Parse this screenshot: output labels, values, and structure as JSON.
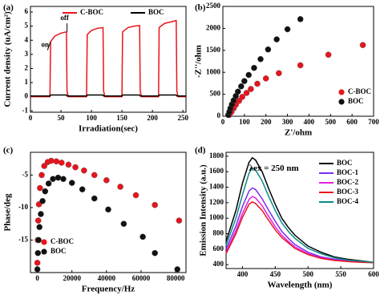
{
  "chart_data": [
    {
      "type": "line",
      "title": "(a)",
      "xlabel": "Irradiation(sec)",
      "ylabel": "Current density (uA/cm²)",
      "x": [
        0,
        32,
        33,
        40,
        50,
        59,
        60,
        62,
        92,
        93,
        100,
        110,
        119,
        120,
        122,
        150,
        151,
        160,
        170,
        179,
        180,
        182,
        210,
        211,
        220,
        230,
        239,
        240,
        242,
        255
      ],
      "series": [
        {
          "name": "C-BOC",
          "color": "#e8141c",
          "values": [
            0,
            0,
            3.9,
            4.3,
            4.5,
            4.6,
            0.4,
            0,
            0,
            4.4,
            4.7,
            4.85,
            4.9,
            0.4,
            0,
            0,
            4.6,
            4.9,
            5.0,
            5.05,
            0.4,
            0,
            0,
            4.9,
            5.2,
            5.3,
            5.4,
            0.4,
            0,
            0
          ]
        },
        {
          "name": "BOC",
          "color": "#000000",
          "values": [
            0.05,
            0.05,
            0.12,
            0.12,
            0.12,
            0.12,
            0.05,
            0.05,
            0.05,
            0.12,
            0.12,
            0.12,
            0.12,
            0.05,
            0.05,
            0.05,
            0.12,
            0.12,
            0.12,
            0.12,
            0.05,
            0.05,
            0.05,
            0.12,
            0.12,
            0.12,
            0.12,
            0.05,
            0.05,
            0.05
          ]
        }
      ],
      "annotations": [
        "on",
        "off"
      ],
      "xlim": [
        0,
        255
      ],
      "xticks": [
        0,
        50,
        100,
        150,
        200,
        250
      ],
      "ylim": [
        -1.1,
        6.4
      ],
      "yticks": [
        -1,
        0,
        1,
        2,
        3,
        4,
        5,
        6
      ],
      "legend": "top"
    },
    {
      "type": "scatter",
      "title": "(b)",
      "xlabel": "Z'/ohm",
      "ylabel": "-Z''/ohm",
      "series": [
        {
          "name": "C-BOC",
          "color": "#e8141c",
          "x": [
            30,
            40,
            50,
            60,
            75,
            90,
            110,
            130,
            160,
            200,
            260,
            360,
            490,
            650
          ],
          "values": [
            30,
            100,
            180,
            260,
            350,
            440,
            530,
            620,
            740,
            860,
            980,
            1160,
            1400,
            1620
          ]
        },
        {
          "name": "BOC",
          "color": "#111111",
          "x": [
            25,
            30,
            35,
            42,
            50,
            60,
            70,
            85,
            100,
            120,
            145,
            175,
            210,
            250,
            300,
            360
          ],
          "values": [
            30,
            100,
            180,
            270,
            360,
            460,
            560,
            680,
            800,
            940,
            1100,
            1300,
            1520,
            1750,
            1980,
            2210
          ]
        }
      ],
      "xlim": [
        0,
        700
      ],
      "xticks": [
        0,
        100,
        200,
        300,
        400,
        500,
        600,
        700
      ],
      "ylim": [
        0,
        2500
      ],
      "yticks": [
        0,
        500,
        1000,
        1500,
        2000,
        2500
      ],
      "legend": "lower right"
    },
    {
      "type": "scatter",
      "title": "(c)",
      "xlabel": "Frequency/Hz",
      "ylabel": "Phase/deg",
      "series": [
        {
          "name": "C-BOC",
          "color": "#e8141c",
          "x": [
            0,
            200,
            500,
            900,
            1500,
            2500,
            4000,
            6000,
            8000,
            11000,
            14000,
            18000,
            22000,
            27000,
            33000,
            40000,
            48000,
            57000,
            68000,
            82000
          ],
          "values": [
            -18.5,
            -15,
            -12,
            -9.5,
            -7,
            -5,
            -3.6,
            -3,
            -2.8,
            -2.9,
            -3.1,
            -3.4,
            -3.8,
            -4.3,
            -5,
            -5.8,
            -6.8,
            -8.1,
            -9.6,
            -12
          ]
        },
        {
          "name": "BOC",
          "color": "#111111",
          "x": [
            0,
            300,
            700,
            1200,
            2000,
            3000,
            4500,
            6500,
            9000,
            12000,
            15000,
            20000,
            26000,
            33000,
            41000,
            50000,
            61000,
            68000,
            81000
          ],
          "values": [
            -19.5,
            -17,
            -15,
            -13,
            -11,
            -9,
            -7.5,
            -6.3,
            -5.6,
            -5.4,
            -5.6,
            -6.2,
            -7.2,
            -8.6,
            -10.3,
            -12.5,
            -14.5,
            -17,
            -19.5
          ]
        }
      ],
      "xlim": [
        -4000,
        86000
      ],
      "xticks": [
        0,
        20000,
        40000,
        60000,
        80000
      ],
      "ylim": [
        -20,
        -1.5
      ],
      "yticks": [
        -5,
        -10,
        -15
      ],
      "legend": "lower left"
    },
    {
      "type": "line",
      "title": "(d)",
      "xlabel": "Wavelength (nm)",
      "ylabel": "Emission Intensity (a.u.)",
      "x": [
        375,
        390,
        400,
        410,
        415,
        420,
        430,
        440,
        450,
        460,
        470,
        480,
        500,
        520,
        540,
        560,
        580,
        600
      ],
      "series": [
        {
          "name": "BOC",
          "color": "#000000",
          "values": [
            700,
            1100,
            1450,
            1720,
            1780,
            1750,
            1600,
            1380,
            1180,
            1000,
            880,
            780,
            640,
            560,
            500,
            470,
            450,
            430
          ]
        },
        {
          "name": "BOC-1",
          "color": "#7b2cf0",
          "values": [
            600,
            900,
            1150,
            1350,
            1390,
            1370,
            1250,
            1100,
            960,
            830,
            740,
            660,
            560,
            500,
            470,
            450,
            440,
            430
          ]
        },
        {
          "name": "BOC-2",
          "color": "#e020e0",
          "values": [
            560,
            840,
            1060,
            1240,
            1280,
            1260,
            1160,
            1020,
            890,
            780,
            700,
            630,
            540,
            490,
            460,
            445,
            435,
            430
          ]
        },
        {
          "name": "BOC-3",
          "color": "#e8141c",
          "values": [
            540,
            800,
            1010,
            1180,
            1210,
            1190,
            1100,
            970,
            850,
            750,
            680,
            610,
            530,
            480,
            455,
            440,
            430,
            425
          ]
        },
        {
          "name": "BOC-4",
          "color": "#0a8a8a",
          "values": [
            650,
            1000,
            1300,
            1580,
            1650,
            1620,
            1480,
            1280,
            1100,
            940,
            830,
            740,
            610,
            540,
            490,
            460,
            445,
            430
          ]
        }
      ],
      "annotations": [
        "λex = 250 nm"
      ],
      "xlim": [
        375,
        600
      ],
      "xticks": [
        400,
        450,
        500,
        550,
        600
      ],
      "ylim": [
        350,
        1850
      ],
      "yticks": [
        400,
        600,
        800,
        1000,
        1200,
        1400,
        1600,
        1800
      ],
      "legend": "upper right"
    }
  ]
}
